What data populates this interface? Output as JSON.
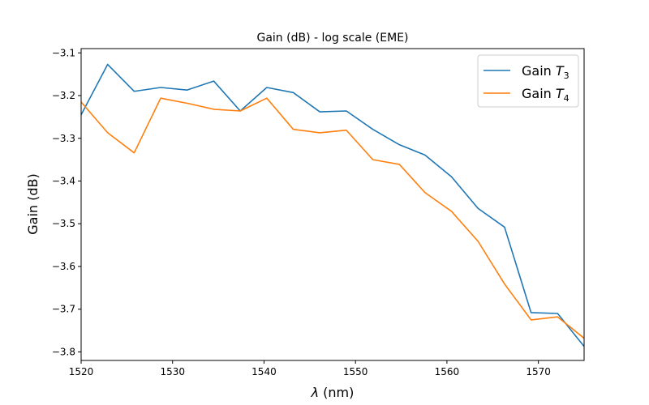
{
  "chart_data": {
    "type": "line",
    "title": "Gain (dB) - log scale (EME)",
    "xlabel": "λ (nm)",
    "ylabel": "Gain (dB)",
    "xlim": [
      1520,
      1575
    ],
    "ylim": [
      -3.82,
      -3.09
    ],
    "xticks": [
      1520,
      1530,
      1540,
      1550,
      1560,
      1570
    ],
    "xtick_labels": [
      "1520",
      "1530",
      "1540",
      "1550",
      "1560",
      "1570"
    ],
    "yticks": [
      -3.8,
      -3.7,
      -3.6,
      -3.5,
      -3.4,
      -3.3,
      -3.2,
      -3.1
    ],
    "ytick_labels": [
      "−3.8",
      "−3.7",
      "−3.6",
      "−3.5",
      "−3.4",
      "−3.3",
      "−3.2",
      "−3.1"
    ],
    "grid": false,
    "legend_position": "top-right",
    "x": [
      1520.0,
      1522.9,
      1525.8,
      1528.7,
      1531.6,
      1534.5,
      1537.4,
      1540.3,
      1543.2,
      1546.1,
      1549.0,
      1551.9,
      1554.8,
      1557.6,
      1560.5,
      1563.4,
      1566.3,
      1569.2,
      1572.1,
      1575.0
    ],
    "series": [
      {
        "name": "Gain T3",
        "label_main": "Gain ",
        "label_var": "T",
        "label_sub": "3",
        "color": "#1f77b4",
        "values": [
          -3.245,
          -3.127,
          -3.19,
          -3.181,
          -3.187,
          -3.166,
          -3.236,
          -3.181,
          -3.193,
          -3.238,
          -3.236,
          -3.279,
          -3.315,
          -3.339,
          -3.39,
          -3.464,
          -3.508,
          -3.708,
          -3.71,
          -3.787
        ]
      },
      {
        "name": "Gain T4",
        "label_main": "Gain ",
        "label_var": "T",
        "label_sub": "4",
        "color": "#ff7f0e",
        "values": [
          -3.215,
          -3.287,
          -3.334,
          -3.206,
          -3.218,
          -3.232,
          -3.236,
          -3.206,
          -3.279,
          -3.287,
          -3.281,
          -3.35,
          -3.361,
          -3.427,
          -3.471,
          -3.541,
          -3.641,
          -3.725,
          -3.718,
          -3.768
        ]
      }
    ]
  }
}
